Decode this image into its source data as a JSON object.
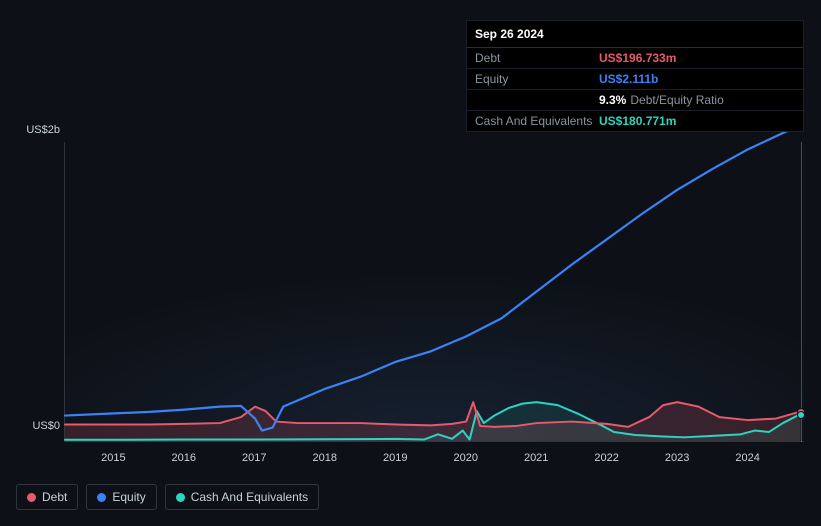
{
  "chart": {
    "type": "area-line",
    "background_color": "#0d1117",
    "grid_color": "#30363d",
    "text_color": "#c9d1d9",
    "label_fontsize": 11,
    "plot_glow": "radial-gradient",
    "y_axis": {
      "min": 0,
      "max": 2000000000,
      "labels": [
        {
          "text": "US$2b",
          "value": 2000000000
        },
        {
          "text": "US$0",
          "value": 0
        }
      ]
    },
    "x_axis": {
      "min": 2014.3,
      "max": 2024.8,
      "ticks": [
        2015,
        2016,
        2017,
        2018,
        2019,
        2020,
        2021,
        2022,
        2023,
        2024
      ]
    },
    "series": {
      "debt": {
        "label": "Debt",
        "color": "#e75a6b",
        "fill_opacity": 0.18,
        "line_width": 2,
        "points": [
          [
            2014.3,
            110000000
          ],
          [
            2015.0,
            110000000
          ],
          [
            2015.5,
            110000000
          ],
          [
            2016.0,
            115000000
          ],
          [
            2016.5,
            120000000
          ],
          [
            2016.8,
            160000000
          ],
          [
            2017.0,
            230000000
          ],
          [
            2017.15,
            200000000
          ],
          [
            2017.3,
            130000000
          ],
          [
            2017.6,
            120000000
          ],
          [
            2018.0,
            120000000
          ],
          [
            2018.5,
            120000000
          ],
          [
            2019.0,
            110000000
          ],
          [
            2019.5,
            105000000
          ],
          [
            2019.8,
            115000000
          ],
          [
            2020.0,
            130000000
          ],
          [
            2020.1,
            260000000
          ],
          [
            2020.2,
            100000000
          ],
          [
            2020.4,
            95000000
          ],
          [
            2020.7,
            100000000
          ],
          [
            2021.0,
            120000000
          ],
          [
            2021.5,
            130000000
          ],
          [
            2022.0,
            115000000
          ],
          [
            2022.3,
            95000000
          ],
          [
            2022.6,
            160000000
          ],
          [
            2022.8,
            240000000
          ],
          [
            2023.0,
            260000000
          ],
          [
            2023.3,
            230000000
          ],
          [
            2023.6,
            160000000
          ],
          [
            2024.0,
            140000000
          ],
          [
            2024.4,
            150000000
          ],
          [
            2024.75,
            196733000
          ]
        ]
      },
      "equity": {
        "label": "Equity",
        "color": "#3b82f6",
        "fill_opacity": 0,
        "line_width": 2.2,
        "points": [
          [
            2014.3,
            170000000
          ],
          [
            2015.0,
            185000000
          ],
          [
            2015.5,
            195000000
          ],
          [
            2016.0,
            210000000
          ],
          [
            2016.5,
            230000000
          ],
          [
            2016.8,
            235000000
          ],
          [
            2017.0,
            150000000
          ],
          [
            2017.1,
            70000000
          ],
          [
            2017.25,
            90000000
          ],
          [
            2017.4,
            230000000
          ],
          [
            2017.7,
            290000000
          ],
          [
            2018.0,
            350000000
          ],
          [
            2018.5,
            430000000
          ],
          [
            2019.0,
            530000000
          ],
          [
            2019.5,
            600000000
          ],
          [
            2020.0,
            700000000
          ],
          [
            2020.5,
            820000000
          ],
          [
            2021.0,
            1000000000
          ],
          [
            2021.5,
            1180000000
          ],
          [
            2022.0,
            1350000000
          ],
          [
            2022.5,
            1520000000
          ],
          [
            2023.0,
            1680000000
          ],
          [
            2023.5,
            1820000000
          ],
          [
            2024.0,
            1950000000
          ],
          [
            2024.5,
            2060000000
          ],
          [
            2024.75,
            2111000000
          ]
        ]
      },
      "cash": {
        "label": "Cash And Equivalents",
        "color": "#2dd4bf",
        "fill_opacity": 0.1,
        "line_width": 2,
        "points": [
          [
            2014.3,
            8000000
          ],
          [
            2015.0,
            8000000
          ],
          [
            2016.0,
            10000000
          ],
          [
            2017.0,
            10000000
          ],
          [
            2018.0,
            12000000
          ],
          [
            2019.0,
            14000000
          ],
          [
            2019.4,
            10000000
          ],
          [
            2019.6,
            45000000
          ],
          [
            2019.8,
            15000000
          ],
          [
            2019.95,
            70000000
          ],
          [
            2020.05,
            10000000
          ],
          [
            2020.15,
            200000000
          ],
          [
            2020.25,
            120000000
          ],
          [
            2020.4,
            170000000
          ],
          [
            2020.6,
            220000000
          ],
          [
            2020.8,
            250000000
          ],
          [
            2021.0,
            260000000
          ],
          [
            2021.3,
            240000000
          ],
          [
            2021.6,
            180000000
          ],
          [
            2021.9,
            110000000
          ],
          [
            2022.1,
            60000000
          ],
          [
            2022.4,
            40000000
          ],
          [
            2022.8,
            30000000
          ],
          [
            2023.1,
            25000000
          ],
          [
            2023.5,
            35000000
          ],
          [
            2023.9,
            45000000
          ],
          [
            2024.1,
            70000000
          ],
          [
            2024.3,
            60000000
          ],
          [
            2024.5,
            120000000
          ],
          [
            2024.75,
            180771000
          ]
        ]
      }
    },
    "active_point_x": 2024.75,
    "tooltip": {
      "date": "Sep 26 2024",
      "rows": [
        {
          "label": "Debt",
          "value": "US$196.733m",
          "color": "#e75a6b"
        },
        {
          "label": "Equity",
          "value": "US$2.111b",
          "color": "#3b82f6"
        },
        {
          "label": "",
          "ratio_pct": "9.3%",
          "ratio_label": "Debt/Equity Ratio"
        },
        {
          "label": "Cash And Equivalents",
          "value": "US$180.771m",
          "color": "#2dd4bf"
        }
      ]
    }
  },
  "legend": [
    {
      "key": "debt",
      "label": "Debt",
      "color": "#e75a6b"
    },
    {
      "key": "equity",
      "label": "Equity",
      "color": "#3b82f6"
    },
    {
      "key": "cash",
      "label": "Cash And Equivalents",
      "color": "#2dd4bf"
    }
  ]
}
